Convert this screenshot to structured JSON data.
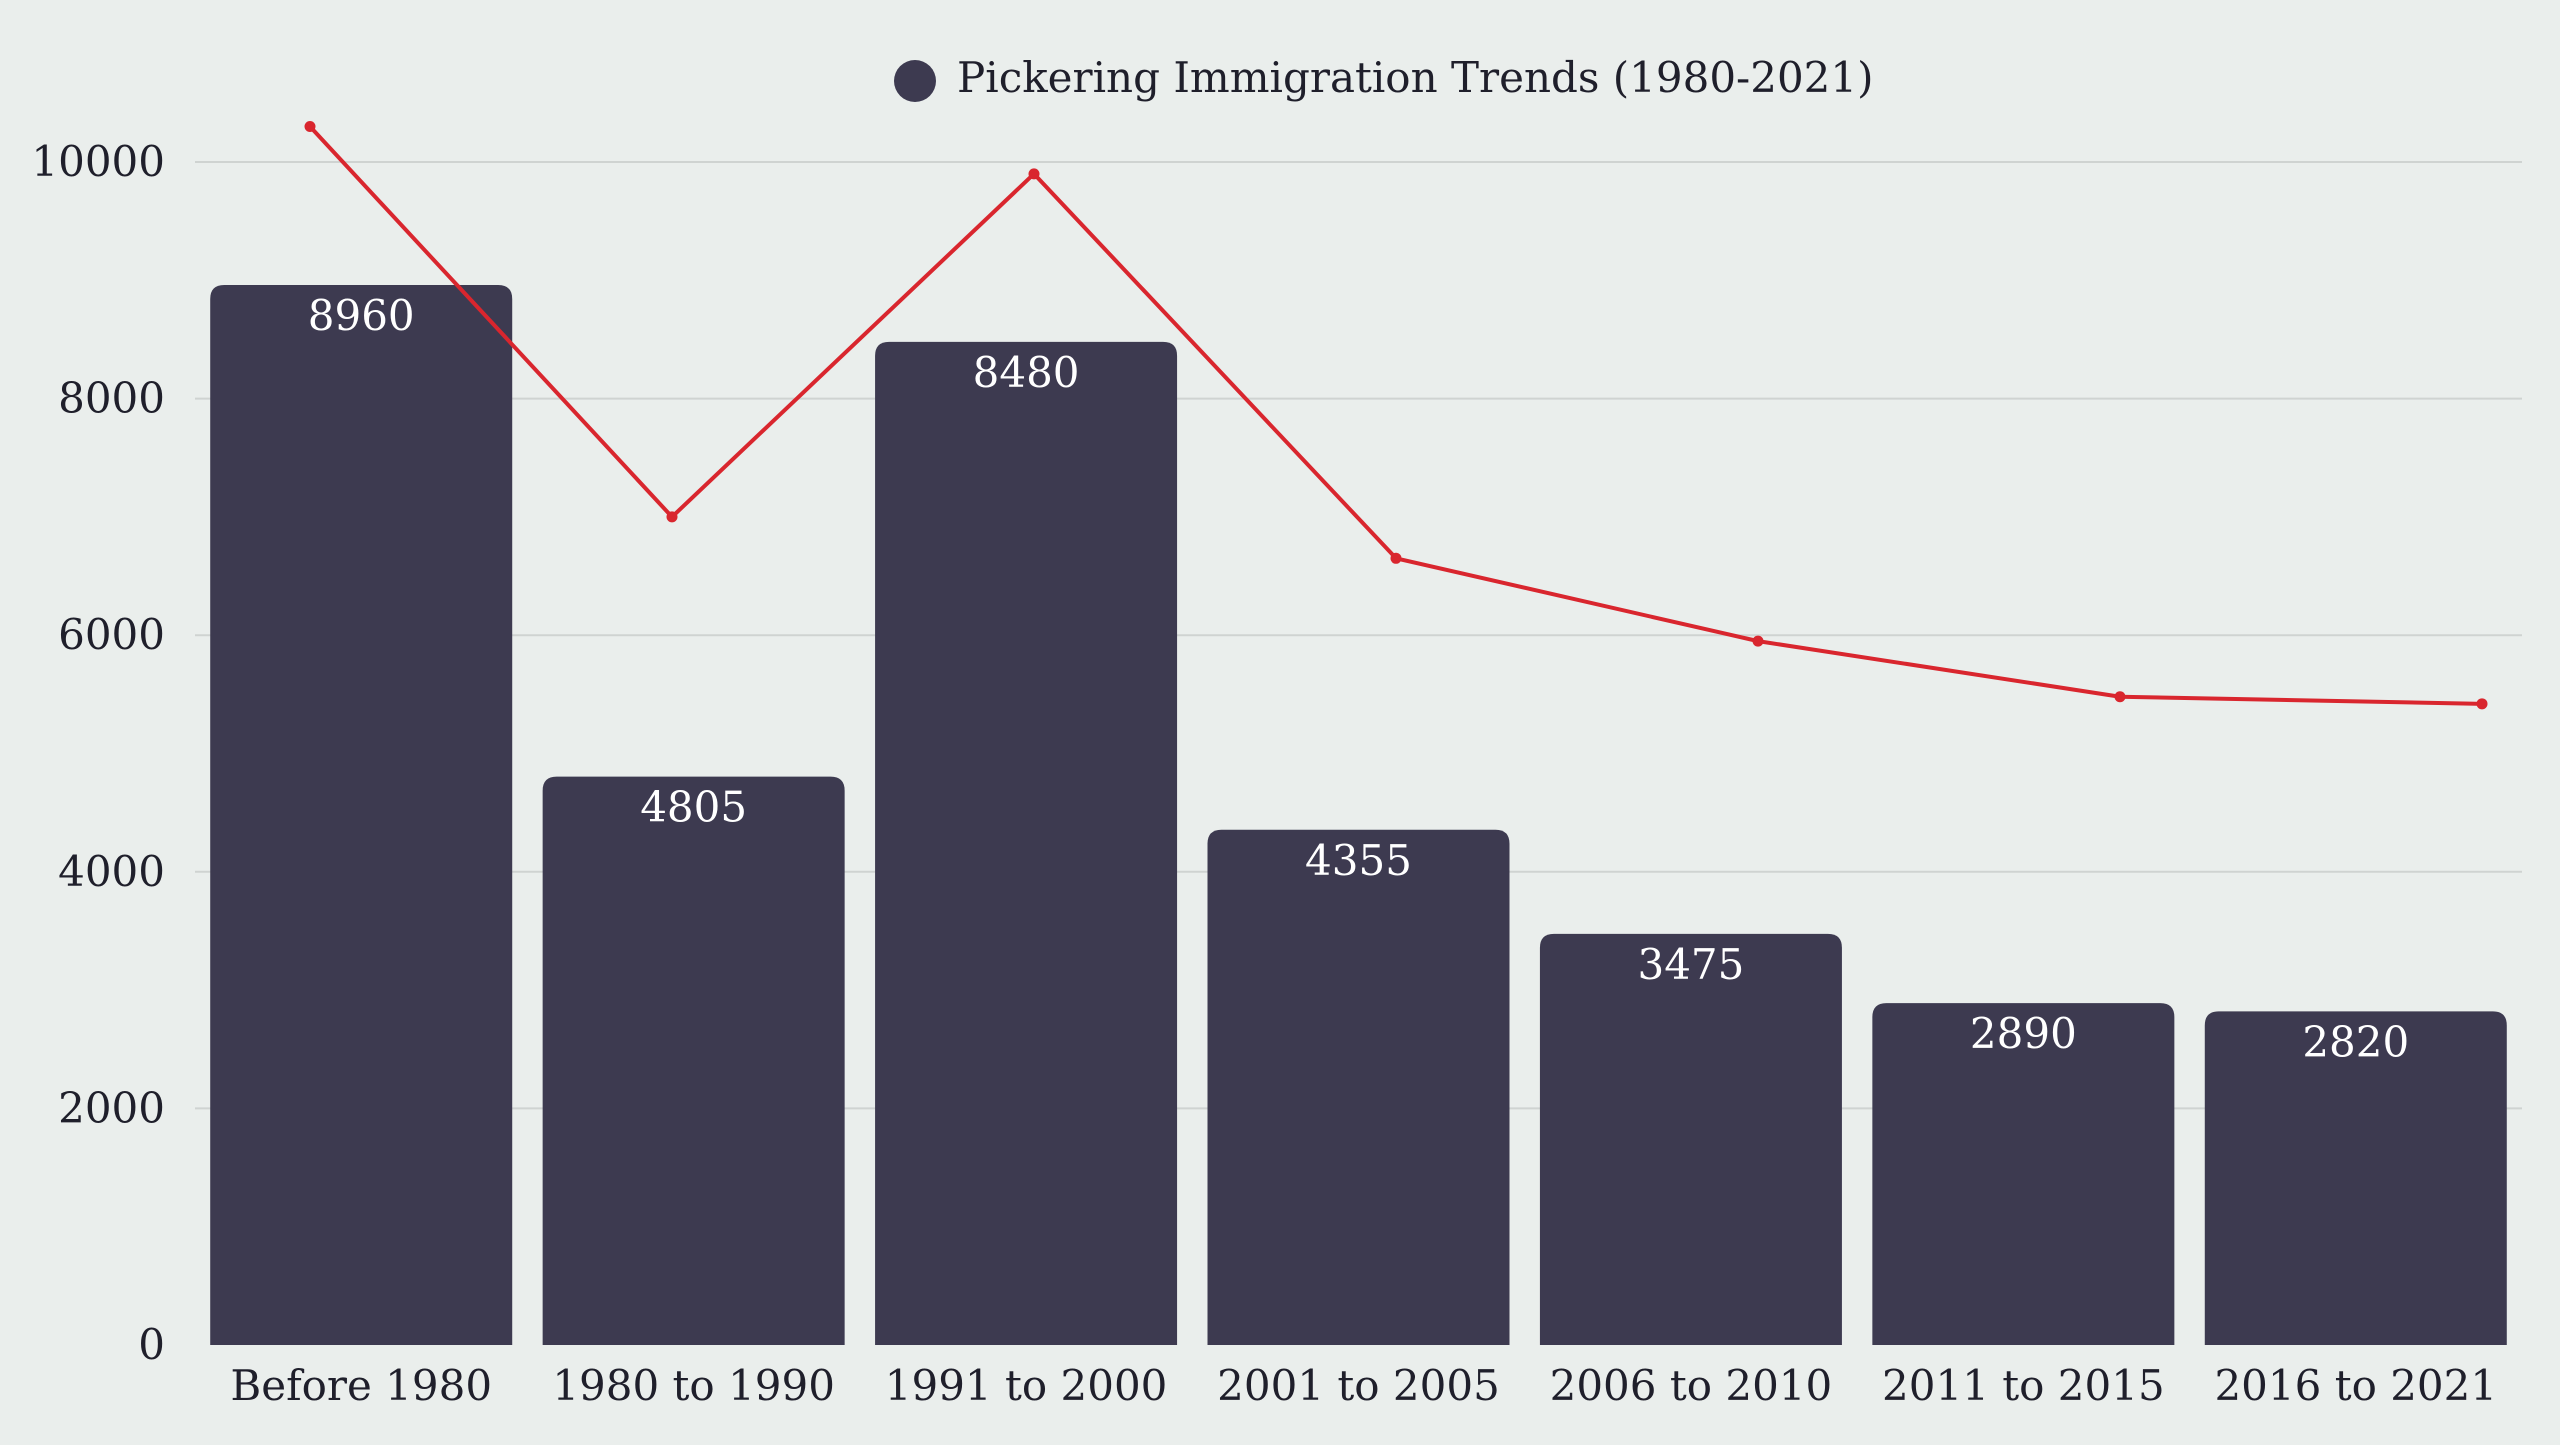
{
  "chart_data": {
    "type": "bar",
    "categories": [
      "Before 1980",
      "1980 to 1990",
      "1991 to 2000",
      "2001 to 2005",
      "2006 to 2010",
      "2011 to 2015",
      "2016 to 2021"
    ],
    "series": [
      {
        "name": "Pickering Immigration Trends (1980-2021)",
        "type": "bar",
        "values": [
          8960,
          4805,
          8480,
          4355,
          3475,
          2890,
          2820
        ],
        "color": "#3d3a50"
      },
      {
        "type": "line",
        "values": [
          10300,
          7000,
          9900,
          6650,
          5950,
          5480,
          5420
        ],
        "color": "#d9262e"
      }
    ],
    "data_labels": [
      "8960",
      "4805",
      "8480",
      "4355",
      "3475",
      "2890",
      "2820"
    ],
    "y_ticks": [
      0,
      2000,
      4000,
      6000,
      8000,
      10000
    ],
    "y_tick_labels": [
      "0",
      "2000",
      "4000",
      "6000",
      "8000",
      "10000"
    ],
    "ylim": [
      0,
      10000
    ],
    "grid": true,
    "legend": {
      "position": "top-center",
      "label": "Pickering Immigration Trends (1980-2021)",
      "marker_color": "#3d3a50"
    },
    "title": "",
    "xlabel": "",
    "ylabel": ""
  }
}
